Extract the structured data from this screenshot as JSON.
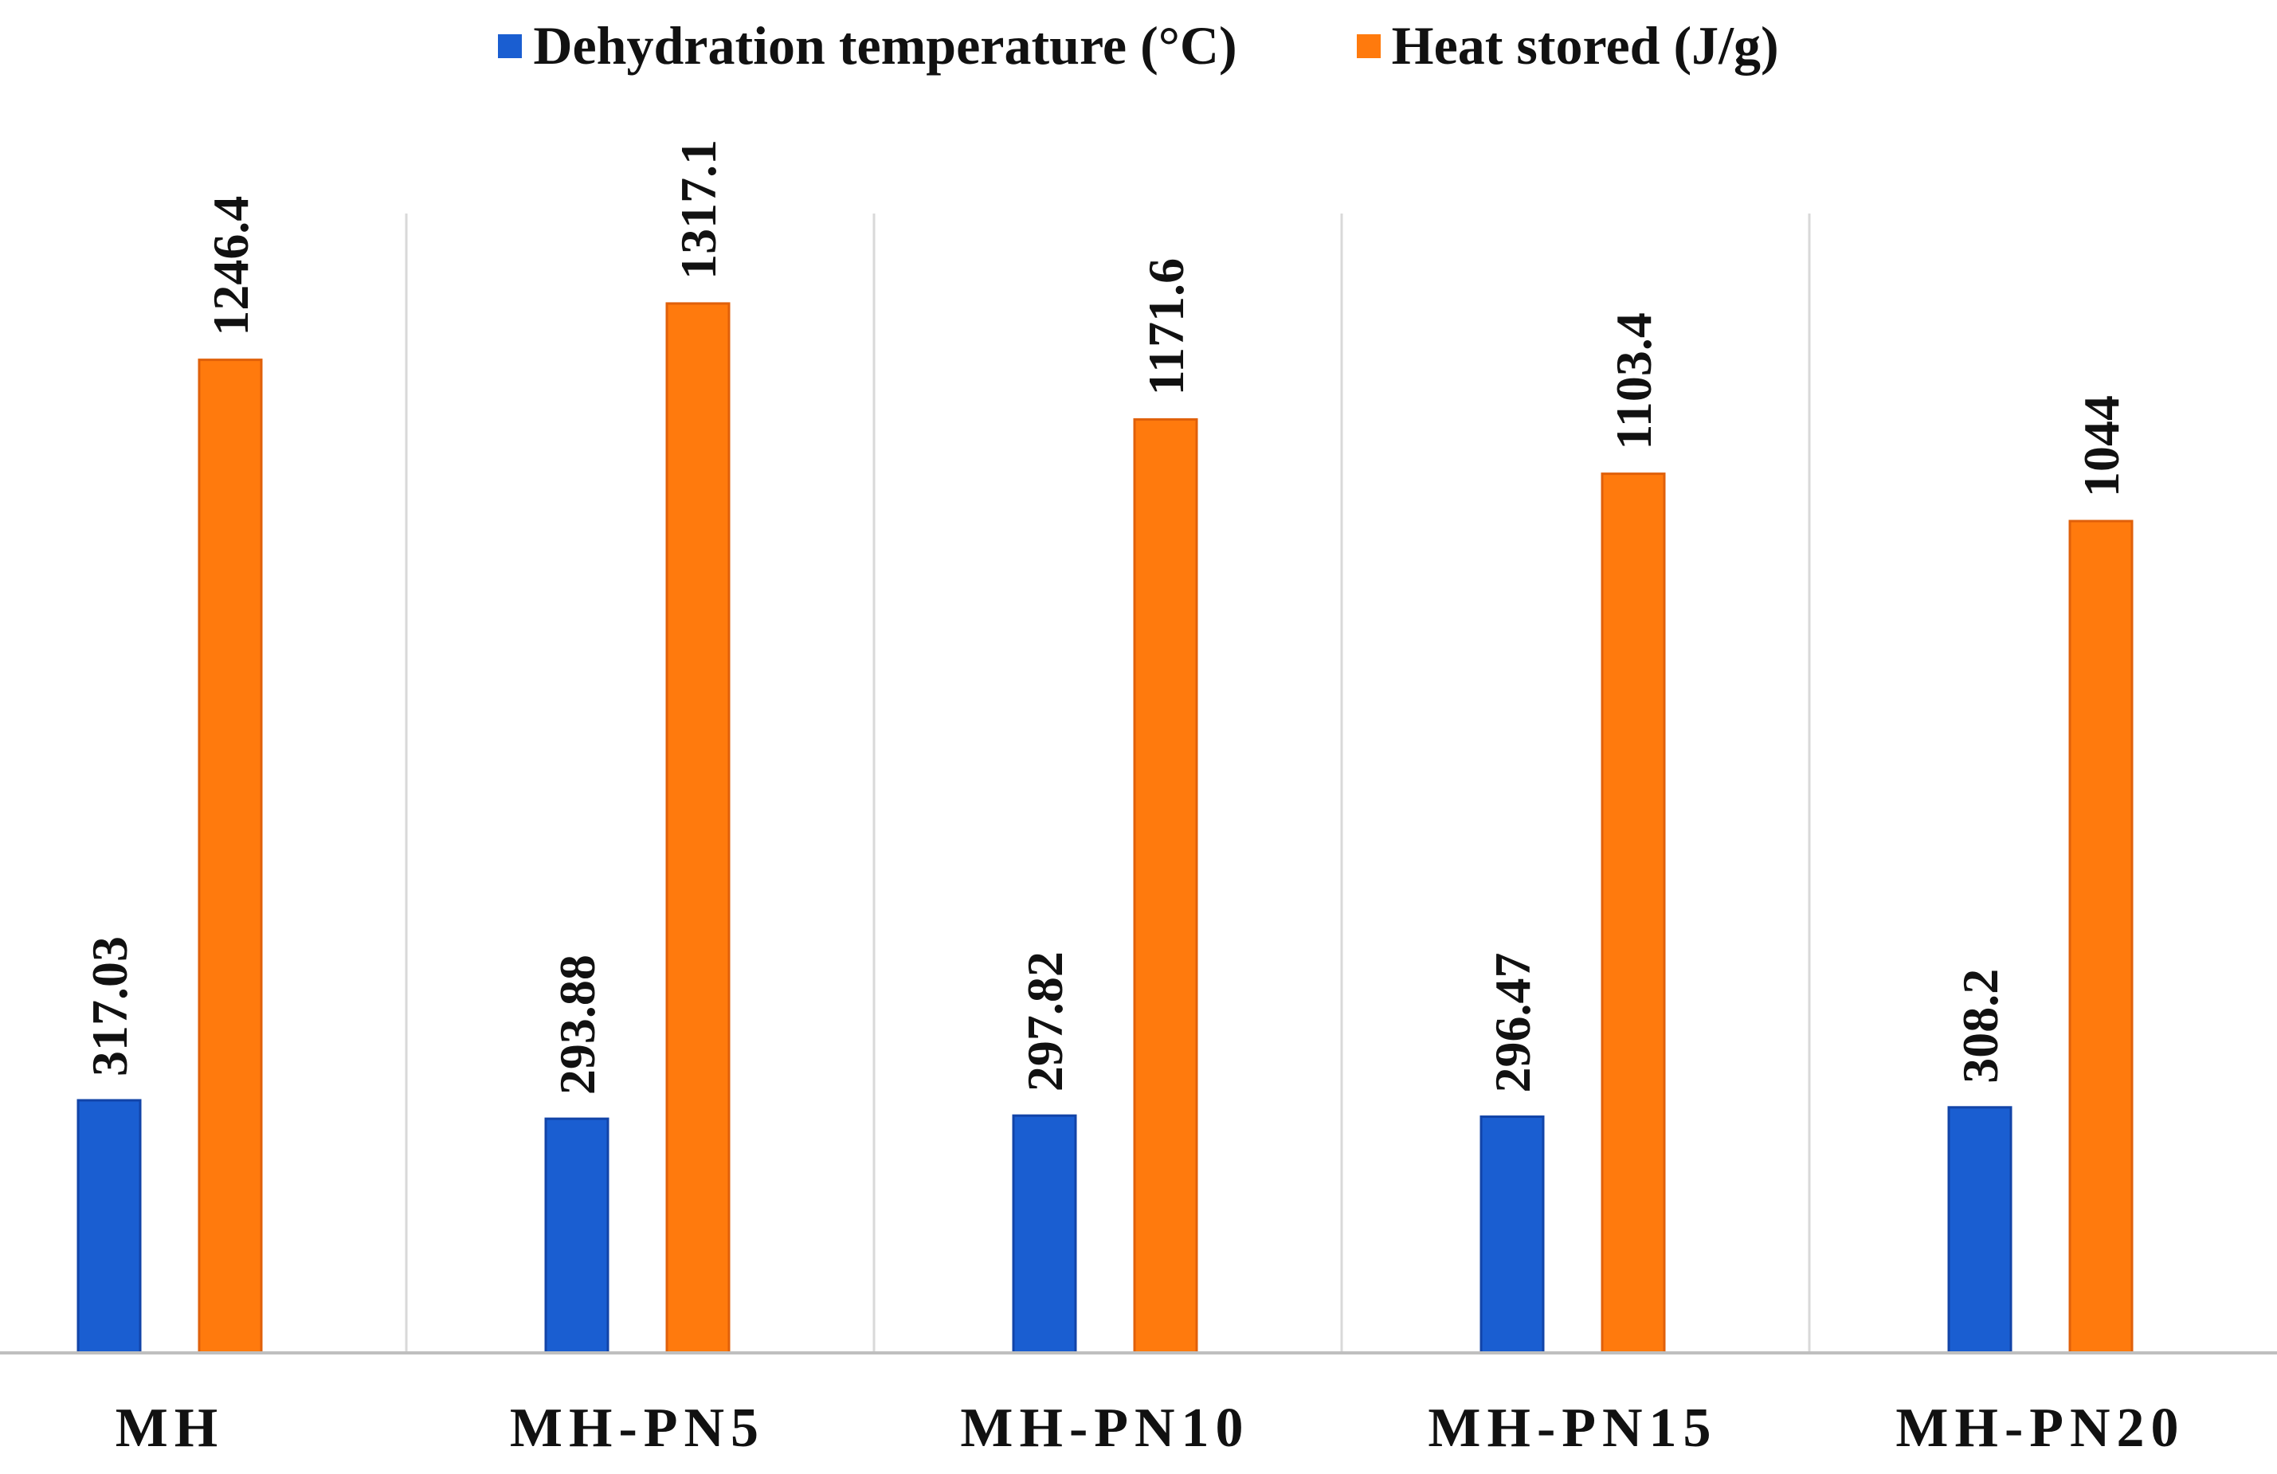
{
  "chart_data": {
    "type": "bar",
    "title": "",
    "xlabel": "",
    "ylabel": "",
    "categories": [
      "MH",
      "MH-PN5",
      "MH-PN10",
      "MH-PN15",
      "MH-PN20"
    ],
    "series": [
      {
        "name": "Dehydration temperature (°C)",
        "color": "#1a5ed1",
        "values": [
          317.03,
          293.88,
          297.82,
          296.47,
          308.2
        ],
        "labels": [
          "317.03",
          "293.88",
          "297.82",
          "296.47",
          "308.2"
        ]
      },
      {
        "name": "Heat stored (J/g)",
        "color": "#ff7a0d",
        "values": [
          1246.4,
          1317.1,
          1171.6,
          1103.4,
          1044
        ],
        "labels": [
          "1246.4",
          "1317.1",
          "1171.6",
          "1103.4",
          "1044"
        ]
      }
    ],
    "ylim": [
      0,
      1400
    ],
    "grid": "vertical separators",
    "legend": "top-center"
  }
}
